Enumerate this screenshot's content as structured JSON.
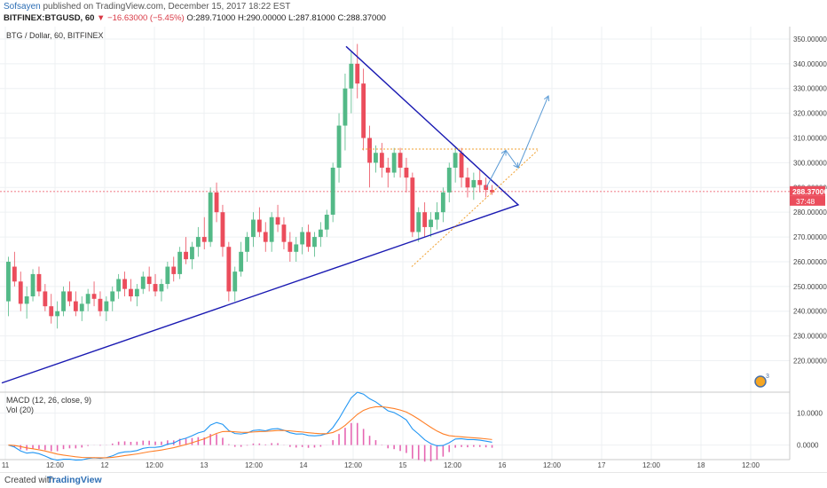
{
  "header": {
    "author": "Sofsayen",
    "published_text": "published on TradingView.com, December 15, 2017 18:22 EST",
    "symbol": "BITFINEX:BTGUSD, 60",
    "change": "▼ −16.63000 (−5.45%)",
    "open": "O:289.71000",
    "high": "H:290.00000",
    "low": "L:287.81000",
    "close": "C:288.37000"
  },
  "footer": {
    "created_with": "Created with",
    "brand": "TradingView"
  },
  "colors": {
    "up": "#53b987",
    "down": "#eb4d5c",
    "trend": "#1a1ab2",
    "projection": "#5b9bd5",
    "dotted": "#f0a030",
    "macd": "#2196f3",
    "signal": "#ff7f27",
    "hist": "#e040a0",
    "price_line": "#eb4d5c"
  },
  "chart_data": {
    "type": "candlestick",
    "title": "BTG / Dollar, 60, BITFINEX",
    "price_axis": {
      "ylim": [
        208,
        355
      ],
      "ticks": [
        "350.00000",
        "340.00000",
        "330.00000",
        "320.00000",
        "310.00000",
        "300.00000",
        "290.00000",
        "280.00000",
        "270.00000",
        "260.00000",
        "250.00000",
        "240.00000",
        "230.00000",
        "220.00000"
      ],
      "last_price": "288.37000",
      "countdown": "37:48"
    },
    "time_axis": {
      "labels": [
        "11",
        "12:00",
        "12",
        "12:00",
        "13",
        "12:00",
        "14",
        "12:00",
        "15",
        "12:00",
        "16",
        "12:00",
        "17",
        "12:00",
        "18",
        "12:00"
      ]
    },
    "candles": [
      [
        244,
        262,
        238,
        260
      ],
      [
        258,
        264,
        250,
        252
      ],
      [
        252,
        256,
        240,
        243
      ],
      [
        243,
        250,
        237,
        246
      ],
      [
        246,
        257,
        244,
        255
      ],
      [
        255,
        258,
        246,
        248
      ],
      [
        248,
        251,
        240,
        242
      ],
      [
        242,
        247,
        235,
        238
      ],
      [
        238,
        244,
        233,
        240
      ],
      [
        240,
        250,
        238,
        248
      ],
      [
        248,
        252,
        242,
        244
      ],
      [
        244,
        248,
        238,
        240
      ],
      [
        240,
        246,
        236,
        243
      ],
      [
        243,
        249,
        240,
        247
      ],
      [
        247,
        252,
        242,
        245
      ],
      [
        245,
        248,
        238,
        240
      ],
      [
        240,
        246,
        236,
        244
      ],
      [
        244,
        250,
        240,
        248
      ],
      [
        248,
        255,
        245,
        253
      ],
      [
        253,
        256,
        246,
        249
      ],
      [
        249,
        253,
        244,
        246
      ],
      [
        246,
        251,
        242,
        249
      ],
      [
        249,
        256,
        247,
        254
      ],
      [
        254,
        258,
        248,
        251
      ],
      [
        251,
        255,
        246,
        248
      ],
      [
        248,
        253,
        244,
        251
      ],
      [
        251,
        260,
        249,
        258
      ],
      [
        258,
        262,
        252,
        255
      ],
      [
        255,
        266,
        253,
        264
      ],
      [
        264,
        270,
        259,
        261
      ],
      [
        261,
        268,
        257,
        266
      ],
      [
        266,
        274,
        262,
        270
      ],
      [
        270,
        278,
        265,
        268
      ],
      [
        268,
        290,
        266,
        288
      ],
      [
        288,
        292,
        276,
        280
      ],
      [
        280,
        283,
        262,
        266
      ],
      [
        266,
        268,
        244,
        248
      ],
      [
        248,
        258,
        244,
        256
      ],
      [
        256,
        268,
        254,
        264
      ],
      [
        264,
        272,
        260,
        270
      ],
      [
        270,
        280,
        266,
        277
      ],
      [
        277,
        282,
        270,
        272
      ],
      [
        272,
        276,
        264,
        268
      ],
      [
        268,
        280,
        264,
        278
      ],
      [
        278,
        283,
        272,
        275
      ],
      [
        275,
        278,
        265,
        268
      ],
      [
        268,
        272,
        260,
        264
      ],
      [
        264,
        270,
        260,
        267
      ],
      [
        267,
        274,
        263,
        272
      ],
      [
        272,
        275,
        264,
        266
      ],
      [
        266,
        272,
        262,
        270
      ],
      [
        270,
        276,
        266,
        273
      ],
      [
        273,
        281,
        270,
        279
      ],
      [
        279,
        300,
        276,
        298
      ],
      [
        298,
        320,
        292,
        315
      ],
      [
        315,
        336,
        305,
        330
      ],
      [
        330,
        345,
        320,
        340
      ],
      [
        340,
        348,
        326,
        332
      ],
      [
        332,
        338,
        305,
        310
      ],
      [
        310,
        315,
        290,
        300
      ],
      [
        300,
        307,
        296,
        304
      ],
      [
        304,
        308,
        294,
        298
      ],
      [
        298,
        302,
        290,
        296
      ],
      [
        296,
        306,
        294,
        304
      ],
      [
        304,
        306,
        294,
        298
      ],
      [
        298,
        302,
        288,
        294
      ],
      [
        294,
        296,
        270,
        272
      ],
      [
        272,
        282,
        268,
        280
      ],
      [
        280,
        284,
        270,
        274
      ],
      [
        274,
        280,
        270,
        277
      ],
      [
        277,
        284,
        273,
        280
      ],
      [
        280,
        290,
        276,
        288
      ],
      [
        288,
        300,
        284,
        298
      ],
      [
        298,
        306,
        292,
        304
      ],
      [
        304,
        306,
        290,
        294
      ],
      [
        294,
        298,
        286,
        290
      ],
      [
        290,
        296,
        285,
        293
      ],
      [
        293,
        297,
        288,
        291
      ],
      [
        291,
        294,
        286,
        289
      ],
      [
        289,
        291,
        287,
        288
      ]
    ],
    "macd": {
      "label": "MACD (12, 26, close, 9)",
      "volume_label": "Vol (20)",
      "ylim": [
        -4,
        16
      ],
      "ticks": [
        "10.0000",
        "0.0000"
      ]
    }
  }
}
